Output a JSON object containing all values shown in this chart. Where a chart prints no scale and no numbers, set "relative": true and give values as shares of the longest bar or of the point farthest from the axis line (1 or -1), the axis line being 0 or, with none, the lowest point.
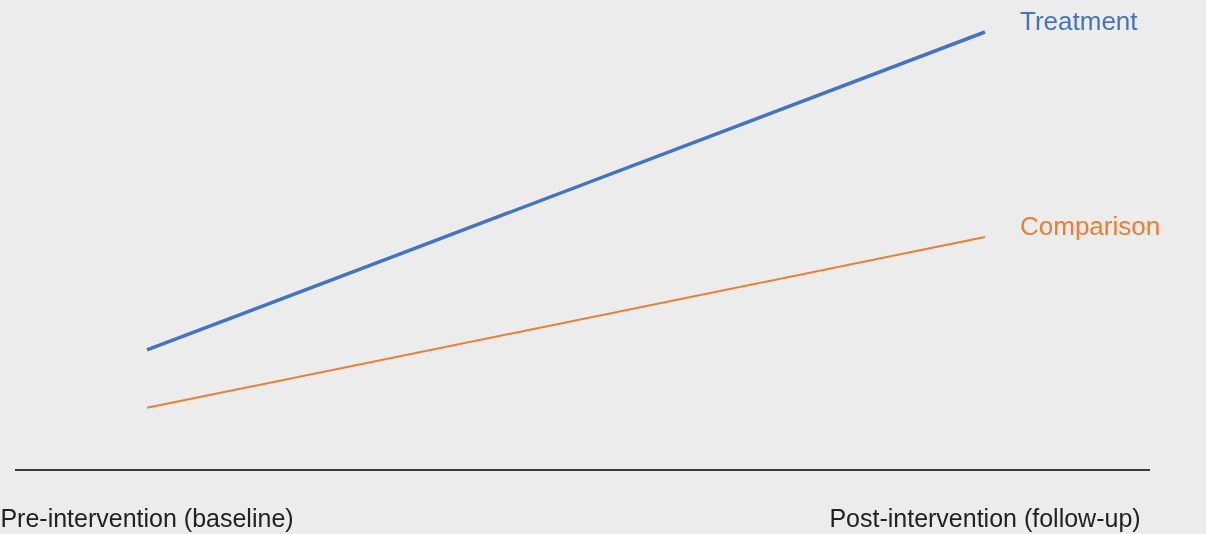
{
  "chart_data": {
    "type": "line",
    "relative": true,
    "categories": [
      "Pre-intervention (baseline)",
      "Post-intervention (follow-up)"
    ],
    "series": [
      {
        "name": "Treatment",
        "color": "#4472c4",
        "values": [
          0.274,
          1
        ]
      },
      {
        "name": "Comparison",
        "color": "#ed7d31",
        "values": [
          0.142,
          0.532
        ]
      }
    ],
    "legend": false,
    "grid": false,
    "marker": "none",
    "line_style": "solid"
  }
}
